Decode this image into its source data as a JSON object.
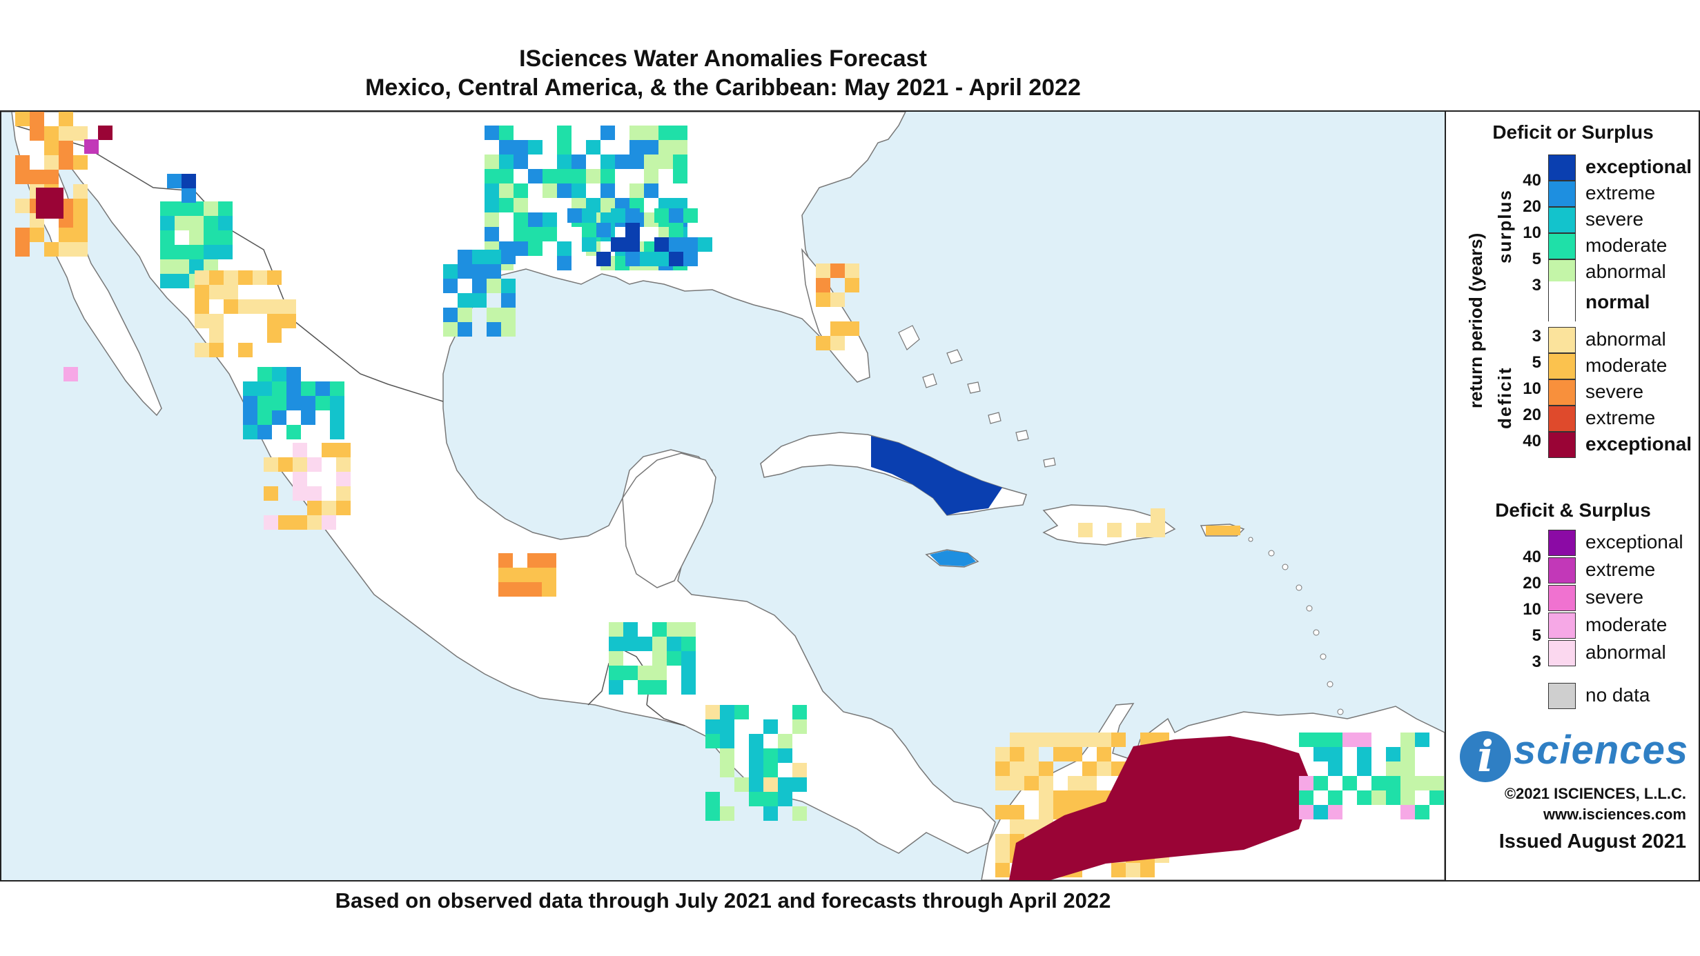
{
  "title": {
    "line1": "ISciences Water Anomalies Forecast",
    "line2": "Mexico, Central America, & the Caribbean: May 2021 - April 2022"
  },
  "footer": "Based on observed data through July 2021 and forecasts through April 2022",
  "legend": {
    "deficit_or_surplus": {
      "heading": "Deficit or Surplus",
      "axis_label": "return period (years)",
      "surplus_label": "surplus",
      "deficit_label": "deficit",
      "items": [
        {
          "label": "exceptional",
          "color": "#0a3fb0",
          "bold": true
        },
        {
          "label": "extreme",
          "color": "#1e8fe0",
          "bold": false
        },
        {
          "label": "severe",
          "color": "#13c3cc",
          "bold": false
        },
        {
          "label": "moderate",
          "color": "#1fe0a8",
          "bold": false
        },
        {
          "label": "abnormal",
          "color": "#c4f5a8",
          "bold": false
        },
        {
          "label": "normal",
          "color": "#ffffff",
          "bold": true
        },
        {
          "label": "abnormal",
          "color": "#fbe39c",
          "bold": false
        },
        {
          "label": "moderate",
          "color": "#fbc24e",
          "bold": false
        },
        {
          "label": "severe",
          "color": "#f8903c",
          "bold": false
        },
        {
          "label": "extreme",
          "color": "#df4a2c",
          "bold": false
        },
        {
          "label": "exceptional",
          "color": "#9a0436",
          "bold": true
        }
      ],
      "surplus_ticks": [
        "40",
        "20",
        "10",
        "5",
        "3"
      ],
      "deficit_ticks": [
        "3",
        "5",
        "10",
        "20",
        "40"
      ]
    },
    "deficit_and_surplus": {
      "heading": "Deficit & Surplus",
      "items": [
        {
          "label": "exceptional",
          "color": "#8b0aa5"
        },
        {
          "label": "extreme",
          "color": "#c238b8"
        },
        {
          "label": "severe",
          "color": "#f072d0"
        },
        {
          "label": "moderate",
          "color": "#f6a8e6"
        },
        {
          "label": "abnormal",
          "color": "#fbd8ef"
        }
      ],
      "ticks": [
        "40",
        "20",
        "10",
        "5",
        "3"
      ]
    },
    "no_data": {
      "label": "no data",
      "color": "#cfcfcf"
    },
    "logo": {
      "mark": "i",
      "text": "sciences"
    },
    "copyright": "©2021 ISCIENCES, L.L.C.",
    "website": "www.isciences.com",
    "issued": "Issued August 2021"
  },
  "map": {
    "ocean_color": "#dff0f8",
    "land_color": "#ffffff"
  }
}
